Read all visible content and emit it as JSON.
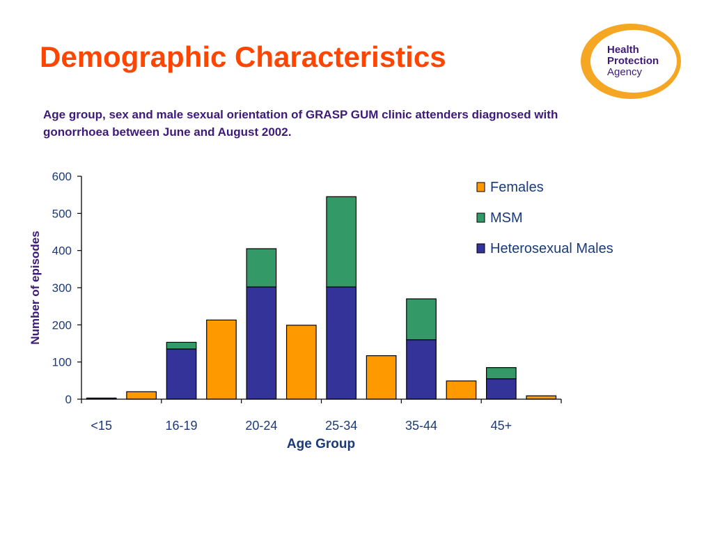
{
  "slide": {
    "title": "Demographic Characteristics",
    "subtitle": "Age group, sex and male sexual orientation of GRASP GUM clinic attenders diagnosed with gonorrhoea between June and August 2002."
  },
  "logo": {
    "line1": "Health",
    "line2": "Protection",
    "line3": "Agency",
    "ring_color": "#f5a623",
    "text_color": "#3d1a78"
  },
  "chart_data": {
    "type": "bar",
    "stacked": true,
    "xlabel": "Age Group",
    "ylabel": "Number of episodes",
    "ylim": [
      0,
      600
    ],
    "yticks": [
      0,
      100,
      200,
      300,
      400,
      500,
      600
    ],
    "group_labels": [
      "<15",
      "16-19",
      "20-24",
      "25-34",
      "35-44",
      "45+"
    ],
    "bars": [
      {
        "group": "<15",
        "sex": "Males",
        "series": {
          "Heterosexual Males": 3,
          "MSM": 0
        }
      },
      {
        "group": "<15",
        "sex": "Females",
        "series": {
          "Females": 20
        }
      },
      {
        "group": "16-19",
        "sex": "Males",
        "series": {
          "Heterosexual Males": 135,
          "MSM": 18
        }
      },
      {
        "group": "16-19",
        "sex": "Females",
        "series": {
          "Females": 213
        }
      },
      {
        "group": "20-24",
        "sex": "Males",
        "series": {
          "Heterosexual Males": 302,
          "MSM": 103
        }
      },
      {
        "group": "20-24",
        "sex": "Females",
        "series": {
          "Females": 199
        }
      },
      {
        "group": "25-34",
        "sex": "Males",
        "series": {
          "Heterosexual Males": 302,
          "MSM": 243
        }
      },
      {
        "group": "25-34",
        "sex": "Females",
        "series": {
          "Females": 117
        }
      },
      {
        "group": "35-44",
        "sex": "Males",
        "series": {
          "Heterosexual Males": 160,
          "MSM": 110
        }
      },
      {
        "group": "35-44",
        "sex": "Females",
        "series": {
          "Females": 49
        }
      },
      {
        "group": "45+",
        "sex": "Males",
        "series": {
          "Heterosexual Males": 55,
          "MSM": 30
        }
      },
      {
        "group": "45+",
        "sex": "Females",
        "series": {
          "Females": 9
        }
      }
    ],
    "series": [
      {
        "name": "Females",
        "color": "#ff9900"
      },
      {
        "name": "MSM",
        "color": "#339966"
      },
      {
        "name": "Heterosexual Males",
        "color": "#333399"
      }
    ],
    "legend_position": "top-right",
    "grid": false
  }
}
